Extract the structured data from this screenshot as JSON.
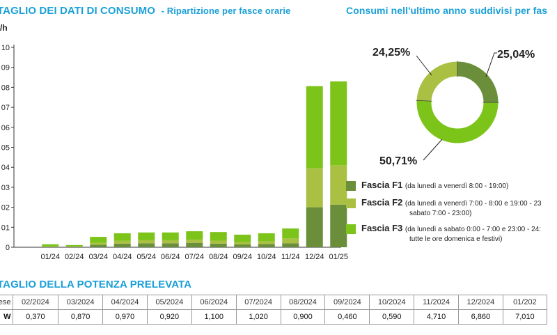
{
  "consumption_section": {
    "title": "TAGLIO DEI DATI DI CONSUMO",
    "subtitle": "- Ripartizione per fasce orarie"
  },
  "annual_section": {
    "title": "Consumi nell'ultimo anno suddivisi per fas"
  },
  "colors": {
    "f1": "#6b8e3a",
    "f2": "#a9c043",
    "f3": "#7dc41a",
    "accent": "#1aa0d8"
  },
  "chart_data": [
    {
      "type": "bar",
      "stacked": true,
      "ylabel": "/h",
      "y_tick_labels": [
        "0",
        "01",
        "02",
        "03",
        "04",
        "05",
        "06",
        "07",
        "08",
        "09",
        "10"
      ],
      "ylim": [
        0,
        1.0
      ],
      "categories": [
        "01/24",
        "02/24",
        "03/24",
        "04/24",
        "05/24",
        "06/24",
        "07/24",
        "08/24",
        "09/24",
        "10/24",
        "11/24",
        "12/24",
        "01/25"
      ],
      "series": [
        {
          "name": "Fascia F1",
          "values": [
            0.003,
            0.003,
            0.012,
            0.018,
            0.02,
            0.02,
            0.022,
            0.018,
            0.014,
            0.016,
            0.02,
            0.2,
            0.213
          ]
        },
        {
          "name": "Fascia F2",
          "values": [
            0.002,
            0.002,
            0.01,
            0.014,
            0.015,
            0.015,
            0.016,
            0.015,
            0.012,
            0.014,
            0.024,
            0.196,
            0.197
          ]
        },
        {
          "name": "Fascia F3",
          "values": [
            0.01,
            0.006,
            0.03,
            0.038,
            0.039,
            0.039,
            0.042,
            0.043,
            0.037,
            0.04,
            0.05,
            0.41,
            0.42
          ]
        }
      ],
      "grid": false
    },
    {
      "type": "pie",
      "donut": true,
      "labels": [
        "Fascia F1",
        "Fascia F2",
        "Fascia F3"
      ],
      "values": [
        25.04,
        24.25,
        50.71
      ],
      "value_labels": [
        "25,04%",
        "24,25%",
        "50,71%"
      ]
    }
  ],
  "legend": [
    {
      "name": "Fascia F1",
      "desc": "(da lunedì a venerdì 8:00 - 19:00)",
      "desc2": ""
    },
    {
      "name": "Fascia F2",
      "desc": "(da lunedì a venerdì 7:00 - 8:00 e 19:00 - 23",
      "desc2": "sabato 7:00 - 23:00)"
    },
    {
      "name": "Fascia F3",
      "desc": "(da lunedì a sabato 0:00 - 7:00 e 23:00 - 24:",
      "desc2": "tutte le ore domenica e festivi)"
    }
  ],
  "power_section": {
    "title": "TAGLIO DELLA POTENZA PRELEVATA",
    "row_header_month": "ese",
    "row_header_kw": "W",
    "months": [
      "02/2024",
      "03/2024",
      "04/2024",
      "05/2024",
      "06/2024",
      "07/2024",
      "08/2024",
      "09/2024",
      "10/2024",
      "11/2024",
      "12/2024",
      "01/202"
    ],
    "values": [
      "0,370",
      "0,870",
      "0,970",
      "0,920",
      "1,100",
      "1,020",
      "0,900",
      "0,460",
      "0,590",
      "4,710",
      "6,860",
      "7,010"
    ]
  }
}
